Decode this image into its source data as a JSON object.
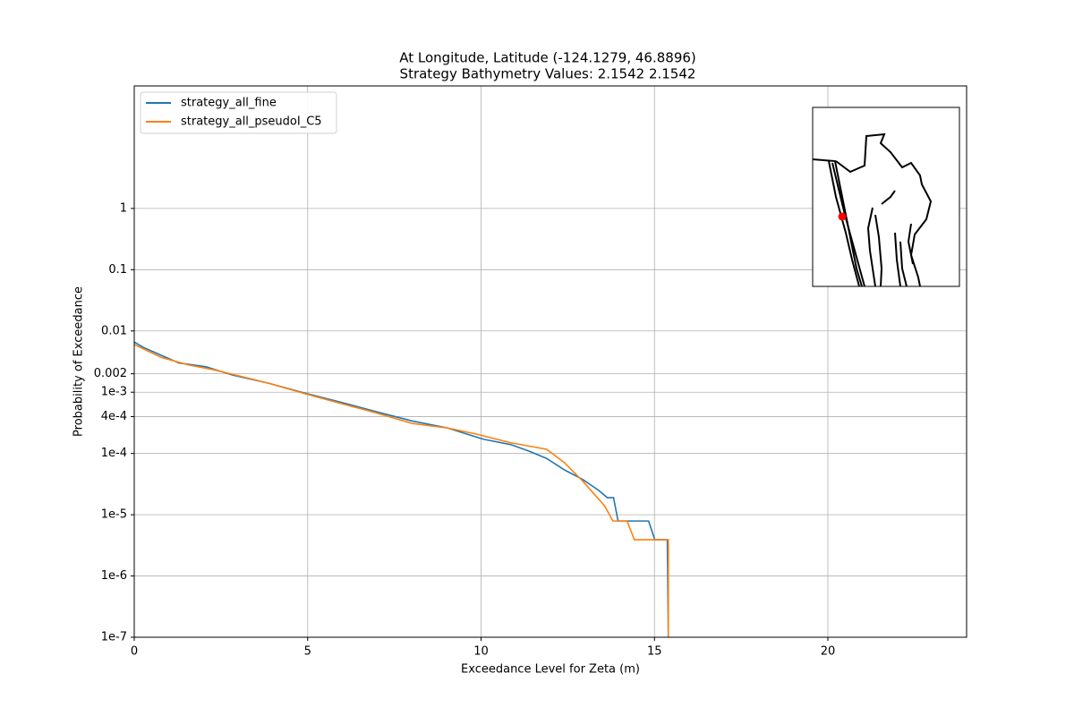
{
  "chart_data": {
    "type": "line",
    "title": "At Longitude, Latitude (-124.1279,  46.8896)",
    "subtitle": "Strategy Bathymetry Values:    2.1542    2.1542",
    "x_label": "Exceedance Level for Zeta (m)",
    "y_label": "Probability of Exceedance",
    "xlim": [
      0,
      24
    ],
    "xticks": [
      0,
      5,
      10,
      15,
      20
    ],
    "ylim": [
      1e-07,
      100
    ],
    "log_y": true,
    "grid": true,
    "legend": "upper left",
    "yticks": [
      {
        "value": 1e-07,
        "label": "1e-7"
      },
      {
        "value": 1e-06,
        "label": "1e-6"
      },
      {
        "value": 1e-05,
        "label": "1e-5"
      },
      {
        "value": 0.0001,
        "label": "1e-4"
      },
      {
        "value": 0.0004,
        "label": "4e-4"
      },
      {
        "value": 0.001,
        "label": "1e-3"
      },
      0.002,
      0.01,
      0.1,
      1
    ],
    "series": [
      {
        "name": "strategy_all_fine",
        "color": "#1f77b4",
        "x": [
          0,
          0.26,
          0.78,
          1.29,
          2.07,
          2.84,
          3.88,
          4.91,
          5.94,
          6.98,
          8.01,
          9.04,
          9.56,
          10.08,
          10.85,
          11.37,
          11.89,
          12.4,
          12.92,
          13.39,
          13.64,
          13.82,
          13.95,
          14.83,
          15.01,
          15.37,
          15.4
        ],
        "values": [
          0.0066,
          0.0054,
          0.004,
          0.003,
          0.0026,
          0.0019,
          0.0014,
          0.00097,
          0.00069,
          0.00048,
          0.00034,
          0.00026,
          0.00021,
          0.00017,
          0.00014,
          0.00011,
          8.3e-05,
          5.4e-05,
          3.8e-05,
          2.5e-05,
          1.9e-05,
          1.9e-05,
          7.9e-06,
          7.9e-06,
          3.9e-06,
          3.9e-06,
          1e-07
        ]
      },
      {
        "name": "strategy_all_pseudoI_C5",
        "color": "#ff7f0e",
        "x": [
          0,
          0.78,
          1.55,
          2.33,
          3.1,
          3.88,
          4.91,
          5.94,
          6.98,
          8.01,
          9.04,
          9.82,
          10.85,
          11.89,
          12.4,
          12.92,
          13.56,
          13.8,
          14.21,
          14.42,
          15.4,
          15.4
        ],
        "values": [
          0.006,
          0.0037,
          0.0028,
          0.0023,
          0.0018,
          0.0014,
          0.00095,
          0.00066,
          0.00046,
          0.00031,
          0.00026,
          0.00021,
          0.00015,
          0.000117,
          7.1e-05,
          3.6e-05,
          1.4e-05,
          7.9e-06,
          7.9e-06,
          3.9e-06,
          3.9e-06,
          1e-07
        ]
      }
    ]
  }
}
